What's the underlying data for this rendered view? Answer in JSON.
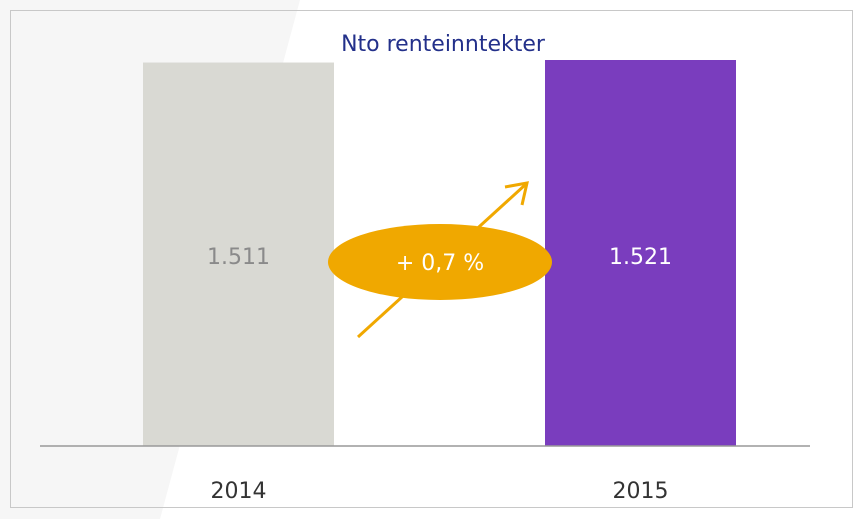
{
  "chart_data": {
    "type": "bar",
    "title": "Nto renteinntekter",
    "categories": [
      "2014",
      "2015"
    ],
    "values": [
      1511,
      1521
    ],
    "value_labels": [
      "1.511",
      "1.521"
    ],
    "colors": [
      "#d9d9d3",
      "#7a3dbe"
    ],
    "annotations": [
      "+ 0,7 %"
    ]
  }
}
